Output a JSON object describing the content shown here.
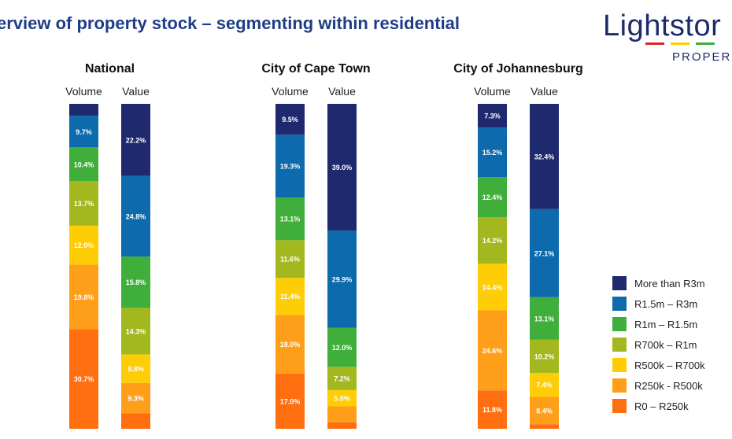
{
  "title": "erview of property stock – segmenting within residential",
  "logo": {
    "word": "Lightstor",
    "sub": "PROPER"
  },
  "chart_data": {
    "type": "bar",
    "stacked": true,
    "percent": true,
    "bar_labels": [
      "Volume",
      "Value"
    ],
    "series": [
      {
        "name": "R0 – R250k",
        "color": "#ff6f0f"
      },
      {
        "name": "R250k - R500k",
        "color": "#ff9f19"
      },
      {
        "name": "R500k – R700k",
        "color": "#ffcd05"
      },
      {
        "name": "R700k – R1m",
        "color": "#a2b81e"
      },
      {
        "name": "R1m – R1.5m",
        "color": "#3fae3a"
      },
      {
        "name": "R1.5m – R3m",
        "color": "#0d6aad"
      },
      {
        "name": "More than R3m",
        "color": "#1f2a6e"
      }
    ],
    "groups": [
      {
        "title": "National",
        "bars": [
          {
            "values": [
              30.7,
              19.8,
              12.0,
              13.7,
              10.4,
              9.7,
              3.7
            ],
            "labels": [
              "30.7%",
              "19.8%",
              "12.0%",
              "13.7%",
              "10.4%",
              "9.7%",
              ""
            ]
          },
          {
            "values": [
              4.8,
              9.3,
              8.8,
              14.3,
              15.8,
              24.8,
              22.2
            ],
            "labels": [
              "",
              "9.3%",
              "8.8%",
              "14.3%",
              "15.8%",
              "24.8%",
              "22.2%"
            ]
          }
        ]
      },
      {
        "title": "City of Cape Town",
        "bars": [
          {
            "values": [
              17.0,
              18.0,
              11.4,
              11.6,
              13.1,
              19.3,
              9.5
            ],
            "labels": [
              "17.0%",
              "18.0%",
              "11.4%",
              "11.6%",
              "13.1%",
              "19.3%",
              "9.5%"
            ]
          },
          {
            "values": [
              2.0,
              4.9,
              5.0,
              7.2,
              12.0,
              29.9,
              39.0
            ],
            "labels": [
              "",
              "",
              "5.0%",
              "7.2%",
              "12.0%",
              "29.9%",
              "39.0%"
            ]
          }
        ]
      },
      {
        "title": "City of Johannesburg",
        "bars": [
          {
            "values": [
              11.8,
              24.6,
              14.4,
              14.2,
              12.4,
              15.2,
              7.3
            ],
            "labels": [
              "11.8%",
              "24.6%",
              "14.4%",
              "14.2%",
              "12.4%",
              "15.2%",
              "7.3%"
            ]
          },
          {
            "values": [
              1.4,
              8.4,
              7.4,
              10.2,
              13.1,
              27.1,
              32.4
            ],
            "labels": [
              "",
              "8.4%",
              "7.4%",
              "10.2%",
              "13.1%",
              "27.1%",
              "32.4%"
            ]
          }
        ]
      }
    ],
    "legend_order": [
      "More than R3m",
      "R1.5m – R3m",
      "R1m – R1.5m",
      "R700k – R1m",
      "R500k – R700k",
      "R250k - R500k",
      "R0 – R250k"
    ],
    "legend_position": "right"
  }
}
